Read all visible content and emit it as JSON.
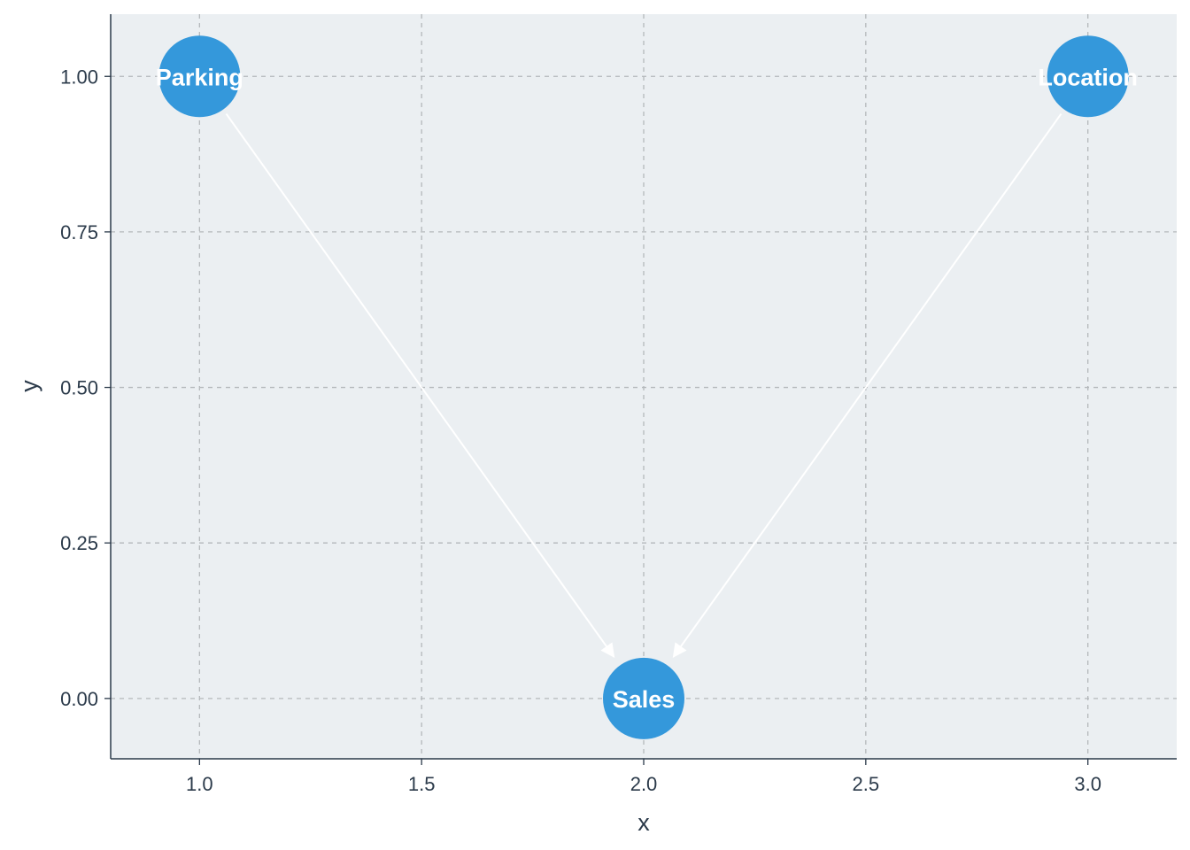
{
  "chart_data": {
    "type": "scatter",
    "title": "",
    "xlabel": "x",
    "ylabel": "y",
    "xlim": [
      0.8,
      3.2
    ],
    "ylim": [
      -0.097,
      1.1
    ],
    "x_ticks": [
      1.0,
      1.5,
      2.0,
      2.5,
      3.0
    ],
    "x_tick_labels": [
      "1.0",
      "1.5",
      "2.0",
      "2.5",
      "3.0"
    ],
    "y_ticks": [
      0.0,
      0.25,
      0.5,
      0.75,
      1.0
    ],
    "y_tick_labels": [
      "0.00",
      "0.25",
      "0.50",
      "0.75",
      "1.00"
    ],
    "grid": true,
    "colors": {
      "panel": "#ebeff2",
      "grid": "#b4b8bb",
      "axis": "#2b3a4a",
      "node": "#3498db",
      "edge": "#ffffff"
    },
    "nodes": [
      {
        "name": "Parking",
        "x": 1,
        "y": 1
      },
      {
        "name": "Location",
        "x": 3,
        "y": 1
      },
      {
        "name": "Sales",
        "x": 2,
        "y": 0
      }
    ],
    "edges": [
      {
        "from": "Parking",
        "to": "Sales"
      },
      {
        "from": "Location",
        "to": "Sales"
      }
    ]
  }
}
